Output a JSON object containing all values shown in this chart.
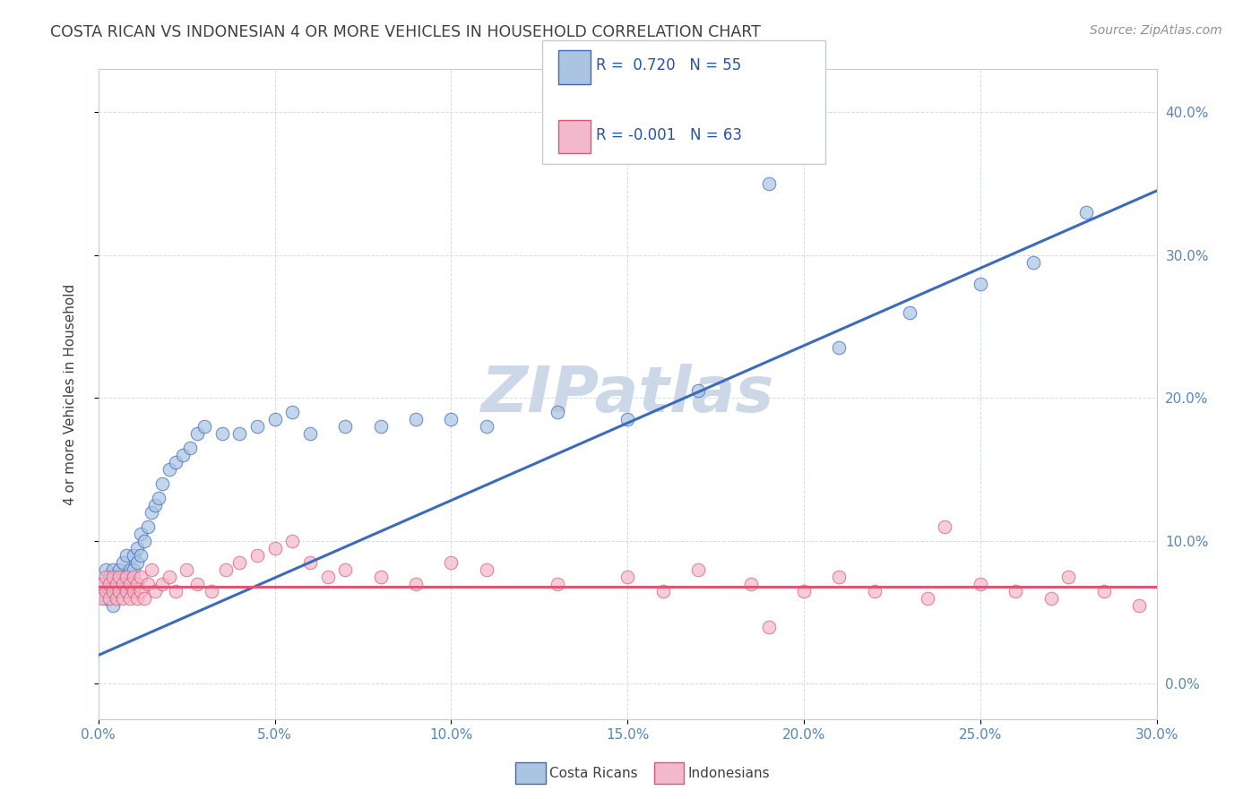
{
  "title": "COSTA RICAN VS INDONESIAN 4 OR MORE VEHICLES IN HOUSEHOLD CORRELATION CHART",
  "source": "Source: ZipAtlas.com",
  "ylabel_label": "4 or more Vehicles in Household",
  "xlim": [
    0.0,
    0.3
  ],
  "ylim": [
    -0.025,
    0.43
  ],
  "legend_labels": [
    "Costa Ricans",
    "Indonesians"
  ],
  "scatter_color_cr": "#aac4e2",
  "scatter_color_id": "#f2b8cb",
  "line_color_cr": "#3b6abf",
  "line_color_id": "#e05575",
  "watermark": "ZIPatlas",
  "watermark_color": "#ccd8e8",
  "background_color": "#ffffff",
  "grid_color": "#c8d4e0",
  "title_color": "#404040",
  "axis_label_color": "#5585bb",
  "cr_R": 0.72,
  "cr_N": 55,
  "id_R": -0.001,
  "id_N": 63,
  "cr_x": [
    0.001,
    0.002,
    0.002,
    0.003,
    0.003,
    0.004,
    0.004,
    0.005,
    0.005,
    0.006,
    0.006,
    0.007,
    0.007,
    0.008,
    0.008,
    0.009,
    0.009,
    0.01,
    0.01,
    0.011,
    0.011,
    0.012,
    0.012,
    0.013,
    0.014,
    0.015,
    0.016,
    0.017,
    0.018,
    0.02,
    0.022,
    0.024,
    0.026,
    0.028,
    0.03,
    0.035,
    0.04,
    0.045,
    0.05,
    0.055,
    0.06,
    0.07,
    0.08,
    0.09,
    0.1,
    0.11,
    0.13,
    0.15,
    0.17,
    0.19,
    0.21,
    0.23,
    0.25,
    0.265,
    0.28
  ],
  "cr_y": [
    0.07,
    0.06,
    0.08,
    0.065,
    0.075,
    0.055,
    0.08,
    0.065,
    0.075,
    0.07,
    0.08,
    0.075,
    0.085,
    0.065,
    0.09,
    0.07,
    0.08,
    0.08,
    0.09,
    0.085,
    0.095,
    0.09,
    0.105,
    0.1,
    0.11,
    0.12,
    0.125,
    0.13,
    0.14,
    0.15,
    0.155,
    0.16,
    0.165,
    0.175,
    0.18,
    0.175,
    0.175,
    0.18,
    0.185,
    0.19,
    0.175,
    0.18,
    0.18,
    0.185,
    0.185,
    0.18,
    0.19,
    0.185,
    0.205,
    0.35,
    0.235,
    0.26,
    0.28,
    0.295,
    0.33
  ],
  "id_x": [
    0.001,
    0.001,
    0.002,
    0.002,
    0.003,
    0.003,
    0.004,
    0.004,
    0.005,
    0.005,
    0.006,
    0.006,
    0.007,
    0.007,
    0.008,
    0.008,
    0.009,
    0.009,
    0.01,
    0.01,
    0.011,
    0.011,
    0.012,
    0.012,
    0.013,
    0.014,
    0.015,
    0.016,
    0.018,
    0.02,
    0.022,
    0.025,
    0.028,
    0.032,
    0.036,
    0.04,
    0.045,
    0.05,
    0.055,
    0.06,
    0.065,
    0.07,
    0.08,
    0.09,
    0.1,
    0.11,
    0.13,
    0.15,
    0.16,
    0.17,
    0.185,
    0.2,
    0.21,
    0.22,
    0.235,
    0.25,
    0.26,
    0.27,
    0.275,
    0.285,
    0.19,
    0.24,
    0.295
  ],
  "id_y": [
    0.07,
    0.06,
    0.075,
    0.065,
    0.06,
    0.07,
    0.065,
    0.075,
    0.06,
    0.07,
    0.065,
    0.075,
    0.07,
    0.06,
    0.075,
    0.065,
    0.07,
    0.06,
    0.075,
    0.065,
    0.07,
    0.06,
    0.075,
    0.065,
    0.06,
    0.07,
    0.08,
    0.065,
    0.07,
    0.075,
    0.065,
    0.08,
    0.07,
    0.065,
    0.08,
    0.085,
    0.09,
    0.095,
    0.1,
    0.085,
    0.075,
    0.08,
    0.075,
    0.07,
    0.085,
    0.08,
    0.07,
    0.075,
    0.065,
    0.08,
    0.07,
    0.065,
    0.075,
    0.065,
    0.06,
    0.07,
    0.065,
    0.06,
    0.075,
    0.065,
    0.04,
    0.11,
    0.055
  ],
  "cr_line": [
    0.02,
    0.345
  ],
  "id_line": [
    0.068,
    0.068
  ],
  "x_tick_vals": [
    0.0,
    0.05,
    0.1,
    0.15,
    0.2,
    0.25,
    0.3
  ],
  "x_tick_labels": [
    "0.0%",
    "5.0%",
    "10.0%",
    "15.0%",
    "20.0%",
    "25.0%",
    "30.0%"
  ],
  "y_tick_vals": [
    0.0,
    0.1,
    0.2,
    0.3,
    0.4
  ],
  "y_tick_labels": [
    "0.0%",
    "10.0%",
    "20.0%",
    "30.0%",
    "40.0%"
  ]
}
